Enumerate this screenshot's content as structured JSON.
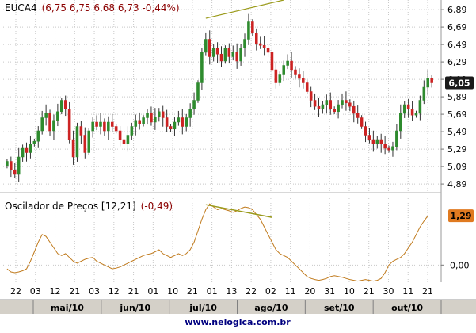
{
  "header": {
    "ticker": "EUCA4",
    "quote": "(6,75  6,75  6,68  6,73  -0,44%)"
  },
  "oscillator": {
    "title": "Oscilador de Preços [12,21]",
    "value_label": "(-0,49)"
  },
  "footer": {
    "credit": "www.nelogica.com.br"
  },
  "colors": {
    "up": "#2e8b2e",
    "down": "#cc2222",
    "grid": "#c8c8c8",
    "oscillator": "#c07a1c",
    "trendline": "#9a9a1a",
    "axis_bg": "#d4d0c8",
    "current_badge": "#1a1a1a",
    "osc_badge": "#e07a20"
  },
  "chart_data": [
    {
      "type": "candlestick",
      "title": "EUCA4",
      "y_ticks": [
        "6,89",
        "6,69",
        "6,49",
        "6,29",
        "6,09",
        "5,89",
        "5,69",
        "5,49",
        "5,29",
        "5,09",
        "4,89"
      ],
      "ylim": [
        4.8,
        7.0
      ],
      "current_value": 6.05,
      "current_label": "6,05",
      "x_day_labels": [
        "22",
        "03",
        "12",
        "21",
        "03",
        "12",
        "21",
        "01",
        "10",
        "21",
        "01",
        "13",
        "22",
        "02",
        "11",
        "20",
        "31",
        "10",
        "21",
        "30",
        "11",
        "21"
      ],
      "x_month_labels": [
        "mai/10",
        "jun/10",
        "jul/10",
        "ago/10",
        "set/10",
        "out/10"
      ],
      "closes": [
        5.15,
        5.05,
        5.0,
        5.2,
        5.3,
        5.25,
        5.35,
        5.38,
        5.5,
        5.65,
        5.7,
        5.5,
        5.62,
        5.72,
        5.85,
        5.75,
        5.4,
        5.2,
        5.55,
        5.45,
        5.25,
        5.5,
        5.6,
        5.55,
        5.6,
        5.5,
        5.6,
        5.55,
        5.5,
        5.4,
        5.35,
        5.45,
        5.55,
        5.62,
        5.58,
        5.65,
        5.7,
        5.6,
        5.66,
        5.72,
        5.65,
        5.55,
        5.52,
        5.6,
        5.65,
        5.55,
        5.65,
        5.75,
        5.85,
        6.05,
        6.4,
        6.55,
        6.35,
        6.45,
        6.38,
        6.3,
        6.45,
        6.35,
        6.4,
        6.3,
        6.45,
        6.55,
        6.75,
        6.62,
        6.5,
        6.48,
        6.45,
        6.4,
        6.2,
        6.05,
        6.15,
        6.25,
        6.3,
        6.2,
        6.15,
        6.1,
        6.05,
        5.95,
        5.85,
        5.78,
        5.75,
        5.8,
        5.85,
        5.75,
        5.72,
        5.8,
        5.85,
        5.82,
        5.78,
        5.7,
        5.65,
        5.55,
        5.45,
        5.4,
        5.35,
        5.4,
        5.35,
        5.3,
        5.28,
        5.32,
        5.5,
        5.7,
        5.8,
        5.75,
        5.68,
        5.7,
        5.85,
        6.0,
        6.1,
        6.05
      ],
      "trendlines": [
        {
          "from": [
            51,
            6.79
          ],
          "to": [
            71,
            7.0
          ]
        }
      ]
    },
    {
      "type": "line",
      "title": "Oscilador de Preços [12,21]",
      "y_ticks": [
        "0,00"
      ],
      "ylim": [
        -0.45,
        1.75
      ],
      "current_value": 1.29,
      "current_label": "1,29",
      "values": [
        -0.1,
        -0.18,
        -0.2,
        -0.18,
        -0.15,
        -0.1,
        0.1,
        0.35,
        0.6,
        0.8,
        0.75,
        0.6,
        0.45,
        0.3,
        0.25,
        0.3,
        0.2,
        0.1,
        0.05,
        0.1,
        0.15,
        0.18,
        0.2,
        0.1,
        0.05,
        0.0,
        -0.05,
        -0.1,
        -0.08,
        -0.05,
        0.0,
        0.05,
        0.1,
        0.15,
        0.2,
        0.25,
        0.28,
        0.3,
        0.35,
        0.4,
        0.3,
        0.25,
        0.2,
        0.25,
        0.3,
        0.25,
        0.3,
        0.4,
        0.6,
        0.9,
        1.2,
        1.45,
        1.6,
        1.52,
        1.45,
        1.48,
        1.45,
        1.42,
        1.38,
        1.42,
        1.48,
        1.52,
        1.5,
        1.45,
        1.32,
        1.2,
        1.0,
        0.8,
        0.6,
        0.4,
        0.3,
        0.25,
        0.2,
        0.1,
        0.0,
        -0.1,
        -0.2,
        -0.3,
        -0.35,
        -0.38,
        -0.4,
        -0.38,
        -0.35,
        -0.3,
        -0.28,
        -0.3,
        -0.32,
        -0.35,
        -0.38,
        -0.4,
        -0.42,
        -0.4,
        -0.38,
        -0.4,
        -0.42,
        -0.4,
        -0.35,
        -0.2,
        0.0,
        0.1,
        0.15,
        0.2,
        0.3,
        0.45,
        0.6,
        0.8,
        1.0,
        1.15,
        1.29
      ],
      "trendlines": [
        {
          "from": [
            51,
            1.58
          ],
          "to": [
            68,
            1.25
          ]
        }
      ]
    }
  ]
}
